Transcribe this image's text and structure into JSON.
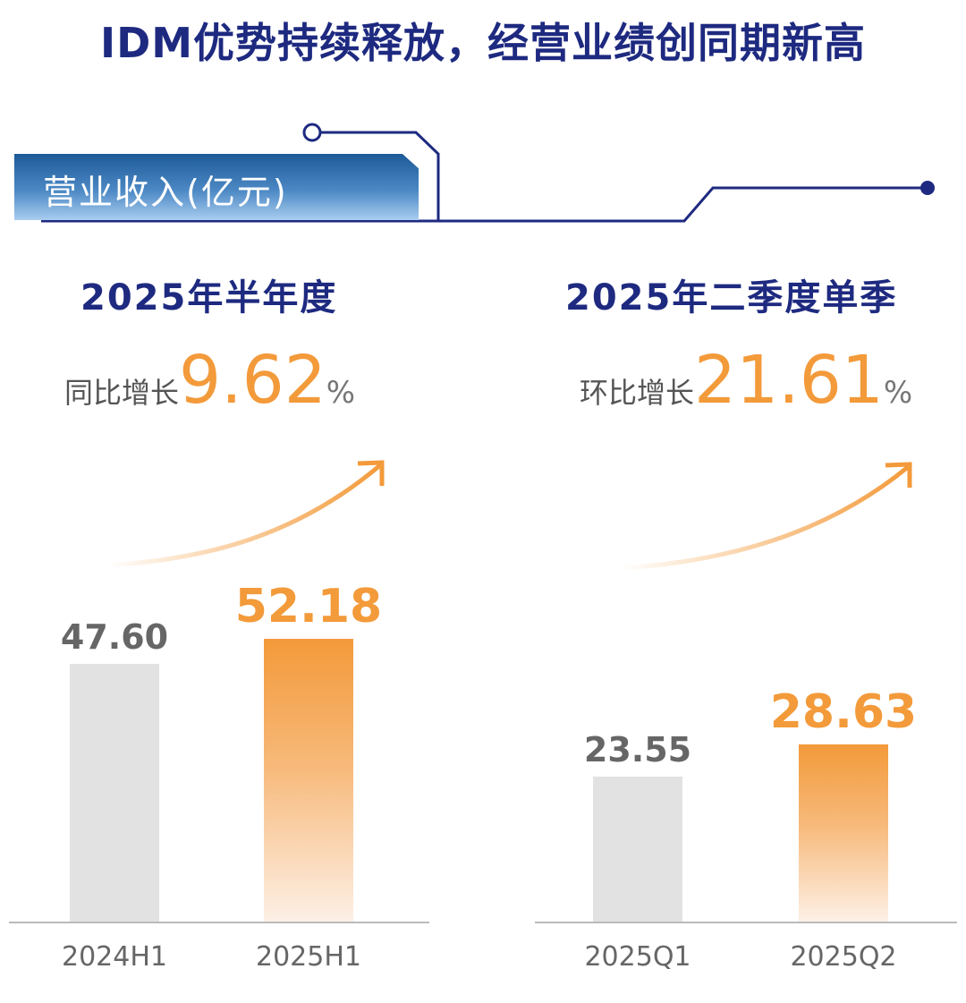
{
  "title": "IDM优势持续释放，经营业绩创同期新高",
  "section_label": "营业收入(亿元)",
  "colors": {
    "title": "#1e2a80",
    "highlight": "#f39a3a",
    "baseline_bar": "#e2e2e2"
  },
  "chart_data": [
    {
      "type": "bar",
      "title": "2025年半年度",
      "growth_label": "同比增长",
      "growth_value": "9.62",
      "growth_unit": "%",
      "categories": [
        "2024H1",
        "2025H1"
      ],
      "values": [
        47.6,
        52.18
      ],
      "value_labels": [
        "47.60",
        "52.18"
      ],
      "ylim": [
        0,
        57
      ]
    },
    {
      "type": "bar",
      "title": "2025年二季度单季",
      "growth_label": "环比增长",
      "growth_value": "21.61",
      "growth_unit": "%",
      "categories": [
        "2025Q1",
        "2025Q2"
      ],
      "values": [
        23.55,
        28.63
      ],
      "value_labels": [
        "23.55",
        "28.63"
      ],
      "ylim": [
        0,
        50
      ]
    }
  ]
}
